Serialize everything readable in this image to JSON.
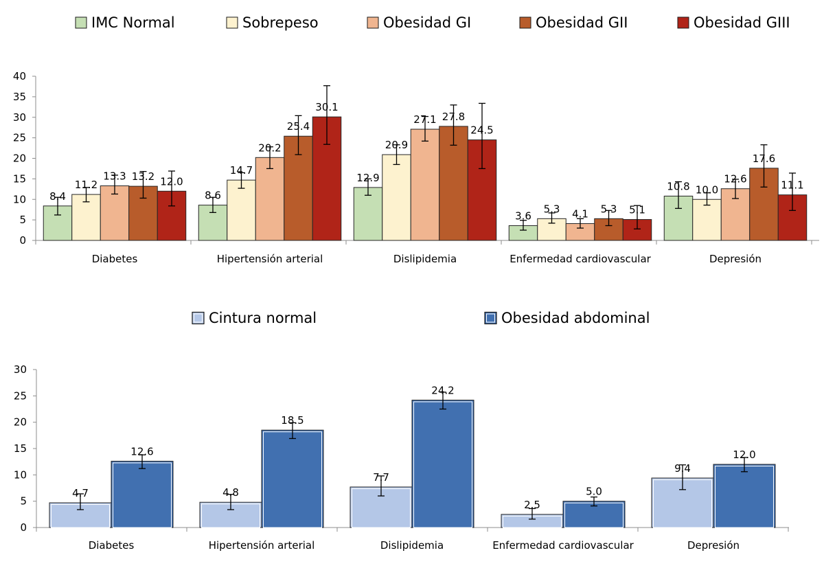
{
  "chart_data": [
    {
      "type": "bar",
      "categories": [
        "Diabetes",
        "Hipertensión arterial",
        "Dislipidemia",
        "Enfermedad cardiovascular",
        "Depresión"
      ],
      "ylim": [
        0,
        40
      ],
      "yticks": [
        "0",
        "5",
        "10",
        "15",
        "20",
        "25",
        "30",
        "35",
        "40"
      ],
      "legend_position": "top",
      "series": [
        {
          "name": "IMC Normal",
          "color": "#c5dfb4",
          "values": [
            8.4,
            8.6,
            12.9,
            3.6,
            10.8
          ],
          "labels": [
            "8.4",
            "8.6",
            "12.9",
            "3.6",
            "10.8"
          ],
          "err_low": [
            6.2,
            6.8,
            11.0,
            2.5,
            7.8
          ],
          "err_high": [
            10.5,
            10.5,
            15.0,
            4.9,
            14.3
          ]
        },
        {
          "name": "Sobrepeso",
          "color": "#fdf2cf",
          "values": [
            11.2,
            14.7,
            20.9,
            5.3,
            10.0
          ],
          "labels": [
            "11.2",
            "14.7",
            "20.9",
            "5.3",
            "10.0"
          ],
          "err_low": [
            9.4,
            12.7,
            18.5,
            4.2,
            8.6
          ],
          "err_high": [
            12.9,
            16.5,
            23.3,
            6.7,
            11.6
          ]
        },
        {
          "name": "Obesidad GI",
          "color": "#f0b590",
          "values": [
            13.3,
            20.2,
            27.1,
            4.1,
            12.6
          ],
          "labels": [
            "13.3",
            "20.2",
            "27.1",
            "4.1",
            "12.6"
          ],
          "err_low": [
            11.3,
            17.5,
            24.2,
            3.0,
            10.2
          ],
          "err_high": [
            15.9,
            22.8,
            30.2,
            5.3,
            14.9
          ]
        },
        {
          "name": "Obesidad GII",
          "color": "#b85c2b",
          "values": [
            13.2,
            25.4,
            27.8,
            5.3,
            17.6
          ],
          "labels": [
            "13.2",
            "25.4",
            "27.8",
            "5.3",
            "17.6"
          ],
          "err_low": [
            10.3,
            20.9,
            23.2,
            3.6,
            13.0
          ],
          "err_high": [
            16.8,
            30.4,
            33.0,
            7.3,
            23.3
          ]
        },
        {
          "name": "Obesidad GIII",
          "color": "#b02418",
          "values": [
            12.0,
            30.1,
            24.5,
            5.1,
            11.1
          ],
          "labels": [
            "12.0",
            "30.1",
            "24.5",
            "5.1",
            "11.1"
          ],
          "err_low": [
            8.4,
            23.4,
            17.5,
            2.8,
            7.3
          ],
          "err_high": [
            16.9,
            37.7,
            33.4,
            8.5,
            16.4
          ]
        }
      ]
    },
    {
      "type": "bar",
      "categories": [
        "Diabetes",
        "Hipertensión arterial",
        "Dislipidemia",
        "Enfermedad cardiovascular",
        "Depresión"
      ],
      "ylim": [
        0,
        30
      ],
      "yticks": [
        "0",
        "5",
        "10",
        "15",
        "20",
        "25",
        "30"
      ],
      "legend_position": "top",
      "series": [
        {
          "name": "Cintura normal",
          "color": "#b4c7e7",
          "values": [
            4.7,
            4.8,
            7.7,
            2.5,
            9.4
          ],
          "labels": [
            "4.7",
            "4.8",
            "7.7",
            "2.5",
            "9.4"
          ],
          "err_low": [
            3.4,
            3.4,
            6.0,
            1.6,
            7.2
          ],
          "err_high": [
            6.4,
            6.3,
            9.8,
            3.6,
            11.9
          ]
        },
        {
          "name": "Obesidad abdominal",
          "color": "#4170b0",
          "values": [
            12.6,
            18.5,
            24.2,
            5.0,
            12.0
          ],
          "labels": [
            "12.6",
            "18.5",
            "24.2",
            "5.0",
            "12.0"
          ],
          "err_low": [
            11.2,
            16.9,
            22.5,
            4.1,
            10.6
          ],
          "err_high": [
            13.8,
            19.9,
            25.7,
            5.8,
            13.3
          ]
        }
      ]
    }
  ]
}
